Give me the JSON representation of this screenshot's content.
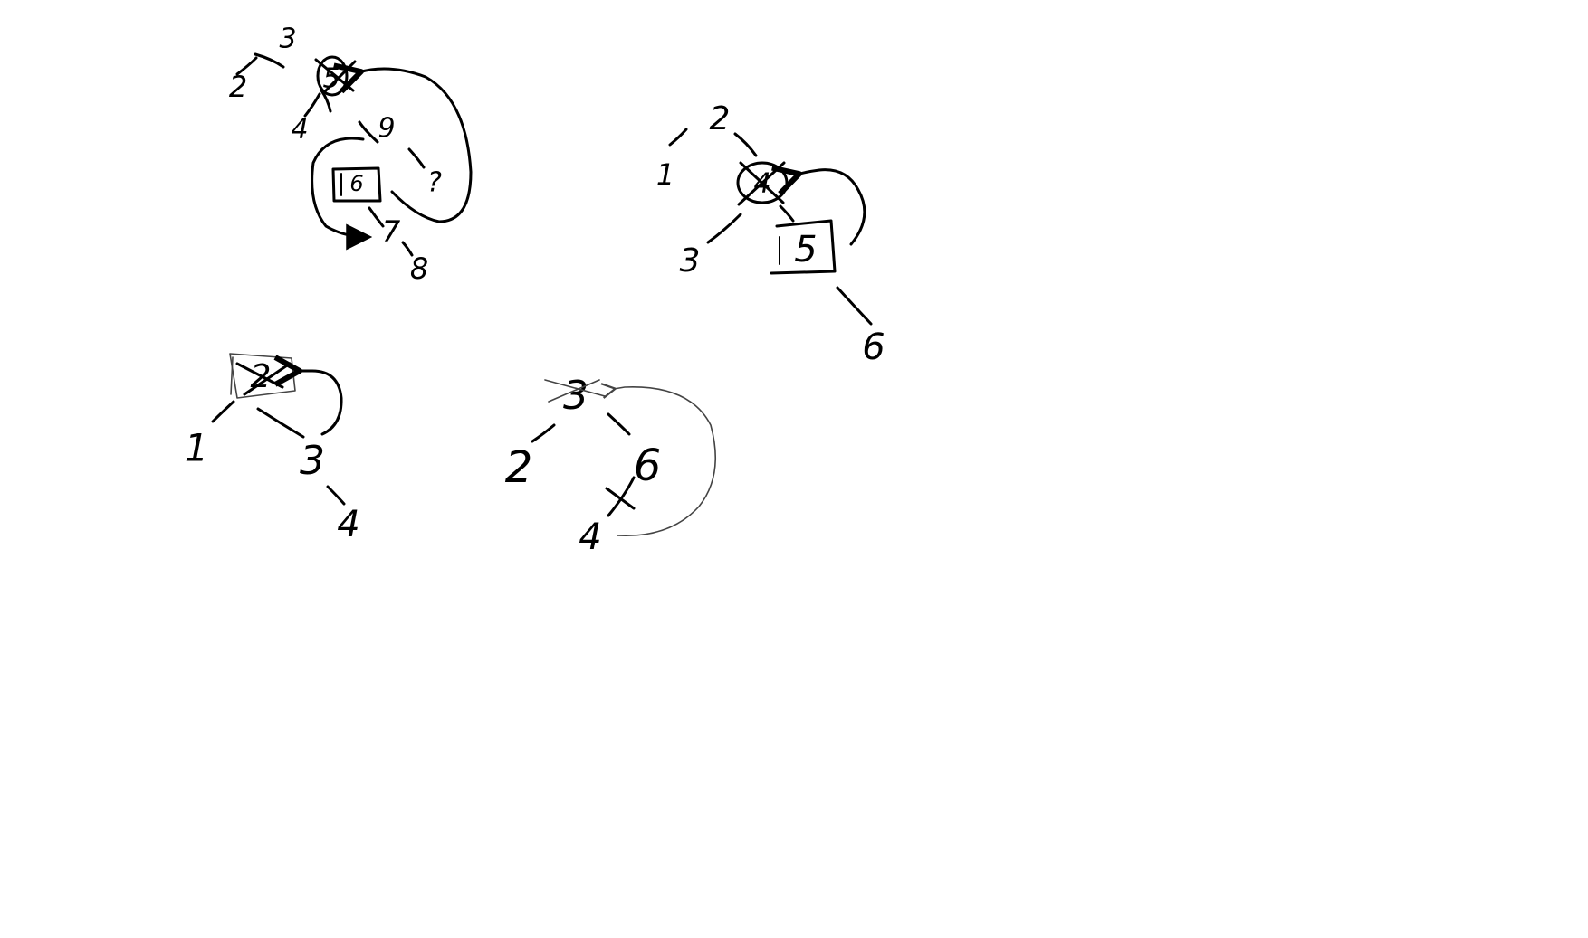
{
  "diagram": {
    "trees": [
      {
        "id": "tree-a",
        "nodes": {
          "n3": "3",
          "n2": "2",
          "n5": "5",
          "n4": "4",
          "n9": "9",
          "n6": "6",
          "n7": "7",
          "n8": "8",
          "nq": "?"
        },
        "marks": {
          "deleted": "5",
          "successor_boxed": "6"
        }
      },
      {
        "id": "tree-b",
        "nodes": {
          "n2": "2",
          "n1": "1",
          "n4": "4",
          "n3": "3",
          "n5": "5",
          "n6": "6"
        },
        "marks": {
          "deleted": "4",
          "successor_boxed": "5"
        }
      },
      {
        "id": "tree-c",
        "nodes": {
          "n2": "2",
          "n1": "1",
          "n3": "3",
          "n4": "4"
        },
        "marks": {
          "deleted": "2",
          "successor_boxed": "3"
        }
      },
      {
        "id": "tree-d",
        "nodes": {
          "n3": "3",
          "n2": "2",
          "n6": "6",
          "n4": "4"
        },
        "marks": {
          "deleted": "3",
          "removed_edge": "6-4"
        }
      }
    ],
    "colors": {
      "background": "#ffffff",
      "ink": "#000000",
      "light_ink": "#444444"
    }
  }
}
